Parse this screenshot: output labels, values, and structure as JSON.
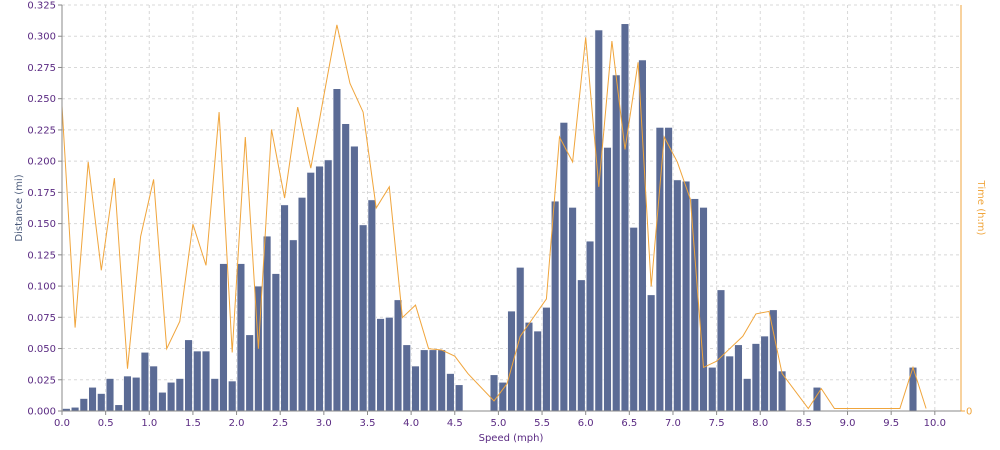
{
  "chart_data": {
    "type": "bar",
    "title": "",
    "xlabel": "Speed (mph)",
    "ylabel": "Distance (mi)",
    "y2label": "Time (h:m)",
    "xlim": [
      0,
      10.3
    ],
    "ylim": [
      0,
      0.325
    ],
    "y2lim": [
      0,
      0.326
    ],
    "x_ticks": [
      "0.0",
      "0.5",
      "1.0",
      "1.5",
      "2.0",
      "2.5",
      "3.0",
      "3.5",
      "4.0",
      "4.5",
      "5.0",
      "5.5",
      "6.0",
      "6.5",
      "7.0",
      "7.5",
      "8.0",
      "8.5",
      "9.0",
      "9.5",
      "10.0"
    ],
    "y_ticks": [
      "0.000",
      "0.025",
      "0.050",
      "0.075",
      "0.100",
      "0.125",
      "0.150",
      "0.175",
      "0.200",
      "0.225",
      "0.250",
      "0.275",
      "0.300",
      "0.325"
    ],
    "y2_ticks": [
      "0"
    ],
    "grid": true,
    "legend": "none",
    "bin_width": 0.1,
    "bar_color": "#5b6b95",
    "line_color": "#f0a53c",
    "axis_label_color": "#5a2a82",
    "y2_axis_color": "#f0a53c",
    "series": [
      {
        "kind": "bar",
        "x": [
          0.0,
          0.1,
          0.2,
          0.3,
          0.4,
          0.5,
          0.6,
          0.7,
          0.8,
          0.9,
          1.0,
          1.1,
          1.2,
          1.3,
          1.4,
          1.5,
          1.6,
          1.7,
          1.8,
          1.9,
          2.0,
          2.1,
          2.2,
          2.3,
          2.4,
          2.5,
          2.6,
          2.7,
          2.8,
          2.9,
          3.0,
          3.1,
          3.2,
          3.3,
          3.4,
          3.5,
          3.6,
          3.7,
          3.8,
          3.9,
          4.0,
          4.1,
          4.2,
          4.3,
          4.4,
          4.5,
          4.6,
          4.7,
          4.8,
          4.9,
          5.0,
          5.1,
          5.2,
          5.3,
          5.4,
          5.5,
          5.6,
          5.7,
          5.8,
          5.9,
          6.0,
          6.1,
          6.2,
          6.3,
          6.4,
          6.5,
          6.6,
          6.7,
          6.8,
          6.9,
          7.0,
          7.1,
          7.2,
          7.3,
          7.4,
          7.5,
          7.6,
          7.7,
          7.8,
          7.9,
          8.0,
          8.1,
          8.2,
          8.3,
          8.4,
          8.5,
          8.6,
          8.7,
          8.8,
          8.9,
          9.0,
          9.1,
          9.2,
          9.3,
          9.4,
          9.5,
          9.6,
          9.7,
          9.8,
          9.9,
          10.0
        ],
        "values": [
          0.002,
          0.003,
          0.01,
          0.019,
          0.014,
          0.026,
          0.005,
          0.028,
          0.027,
          0.047,
          0.036,
          0.015,
          0.023,
          0.026,
          0.057,
          0.048,
          0.048,
          0.026,
          0.118,
          0.024,
          0.118,
          0.061,
          0.1,
          0.14,
          0.11,
          0.165,
          0.137,
          0.171,
          0.191,
          0.196,
          0.201,
          0.258,
          0.23,
          0.212,
          0.149,
          0.169,
          0.074,
          0.075,
          0.089,
          0.053,
          0.036,
          0.049,
          0.049,
          0.049,
          0.03,
          0.021,
          0.0,
          0.0,
          0.0,
          0.029,
          0.023,
          0.08,
          0.115,
          0.071,
          0.064,
          0.083,
          0.168,
          0.231,
          0.163,
          0.105,
          0.136,
          0.305,
          0.211,
          0.269,
          0.31,
          0.147,
          0.281,
          0.093,
          0.227,
          0.227,
          0.185,
          0.184,
          0.17,
          0.163,
          0.035,
          0.097,
          0.044,
          0.053,
          0.026,
          0.054,
          0.06,
          0.081,
          0.032,
          0.0,
          0.0,
          0.0,
          0.019,
          0.0,
          0.0,
          0.0,
          0.0,
          0.0,
          0.0,
          0.0,
          0.0,
          0.0,
          0.0,
          0.035,
          0.0,
          0.0,
          0.0
        ]
      },
      {
        "kind": "line",
        "axis": "right",
        "x": [
          0.0,
          0.15,
          0.3,
          0.45,
          0.6,
          0.75,
          0.9,
          1.05,
          1.2,
          1.35,
          1.5,
          1.65,
          1.8,
          1.95,
          2.1,
          2.25,
          2.4,
          2.55,
          2.7,
          2.85,
          3.0,
          3.15,
          3.3,
          3.45,
          3.6,
          3.75,
          3.9,
          4.05,
          4.2,
          4.35,
          4.5,
          4.65,
          4.95,
          5.1,
          5.25,
          5.4,
          5.55,
          5.7,
          5.85,
          6.0,
          6.15,
          6.3,
          6.45,
          6.6,
          6.75,
          6.9,
          7.05,
          7.2,
          7.35,
          7.5,
          7.65,
          7.8,
          7.95,
          8.1,
          8.25,
          8.55,
          8.7,
          8.85,
          9.6,
          9.75,
          9.9
        ],
        "values": [
          0.245,
          0.067,
          0.2,
          0.113,
          0.187,
          0.034,
          0.14,
          0.186,
          0.05,
          0.072,
          0.15,
          0.117,
          0.24,
          0.047,
          0.22,
          0.05,
          0.226,
          0.171,
          0.244,
          0.195,
          0.253,
          0.31,
          0.263,
          0.24,
          0.163,
          0.18,
          0.075,
          0.085,
          0.05,
          0.049,
          0.044,
          0.03,
          0.008,
          0.022,
          0.06,
          0.075,
          0.09,
          0.22,
          0.2,
          0.3,
          0.18,
          0.297,
          0.21,
          0.28,
          0.1,
          0.22,
          0.2,
          0.17,
          0.035,
          0.04,
          0.05,
          0.06,
          0.078,
          0.08,
          0.03,
          0.002,
          0.018,
          0.002,
          0.002,
          0.035,
          0.002
        ]
      }
    ]
  }
}
